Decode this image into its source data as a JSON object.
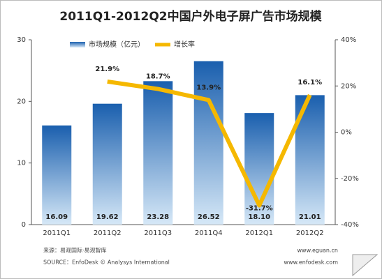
{
  "chart_data": {
    "type": "bar",
    "title": "2011Q1-2012Q2中国户外电子屏广告市场规模",
    "categories": [
      "2011Q1",
      "2011Q2",
      "2011Q3",
      "2011Q4",
      "2012Q1",
      "2012Q2"
    ],
    "series": [
      {
        "name": "市场规模（亿元）",
        "type": "bar",
        "color": "#1f6cb8",
        "values": [
          16.09,
          19.62,
          23.28,
          26.52,
          18.1,
          21.01
        ],
        "value_labels": [
          "16.09",
          "19.62",
          "23.28",
          "26.52",
          "18.10",
          "21.01"
        ]
      },
      {
        "name": "增长率",
        "type": "line",
        "axis": "y2",
        "color": "#f5b800",
        "values": [
          null,
          21.9,
          18.7,
          13.9,
          -31.7,
          16.1
        ],
        "value_labels": [
          null,
          "21.9%",
          "18.7%",
          "13.9%",
          "-31.7%",
          "16.1%"
        ]
      }
    ],
    "ylim": [
      0,
      30
    ],
    "yticks": [
      0,
      10,
      20,
      30
    ],
    "y2lim": [
      -40,
      40
    ],
    "y2ticks": [
      {
        "value": -40,
        "label": "-40%"
      },
      {
        "value": -20,
        "label": "-20%"
      },
      {
        "value": 0,
        "label": "0%"
      },
      {
        "value": 20,
        "label": "20%"
      },
      {
        "value": 40,
        "label": "40%"
      }
    ],
    "sources": [
      "来源：易观国际·易观智库",
      "SOURCE：EnfoDesk © Analysys International"
    ],
    "links": [
      "www.eguan.cn",
      "www.enfodesk.com"
    ]
  }
}
